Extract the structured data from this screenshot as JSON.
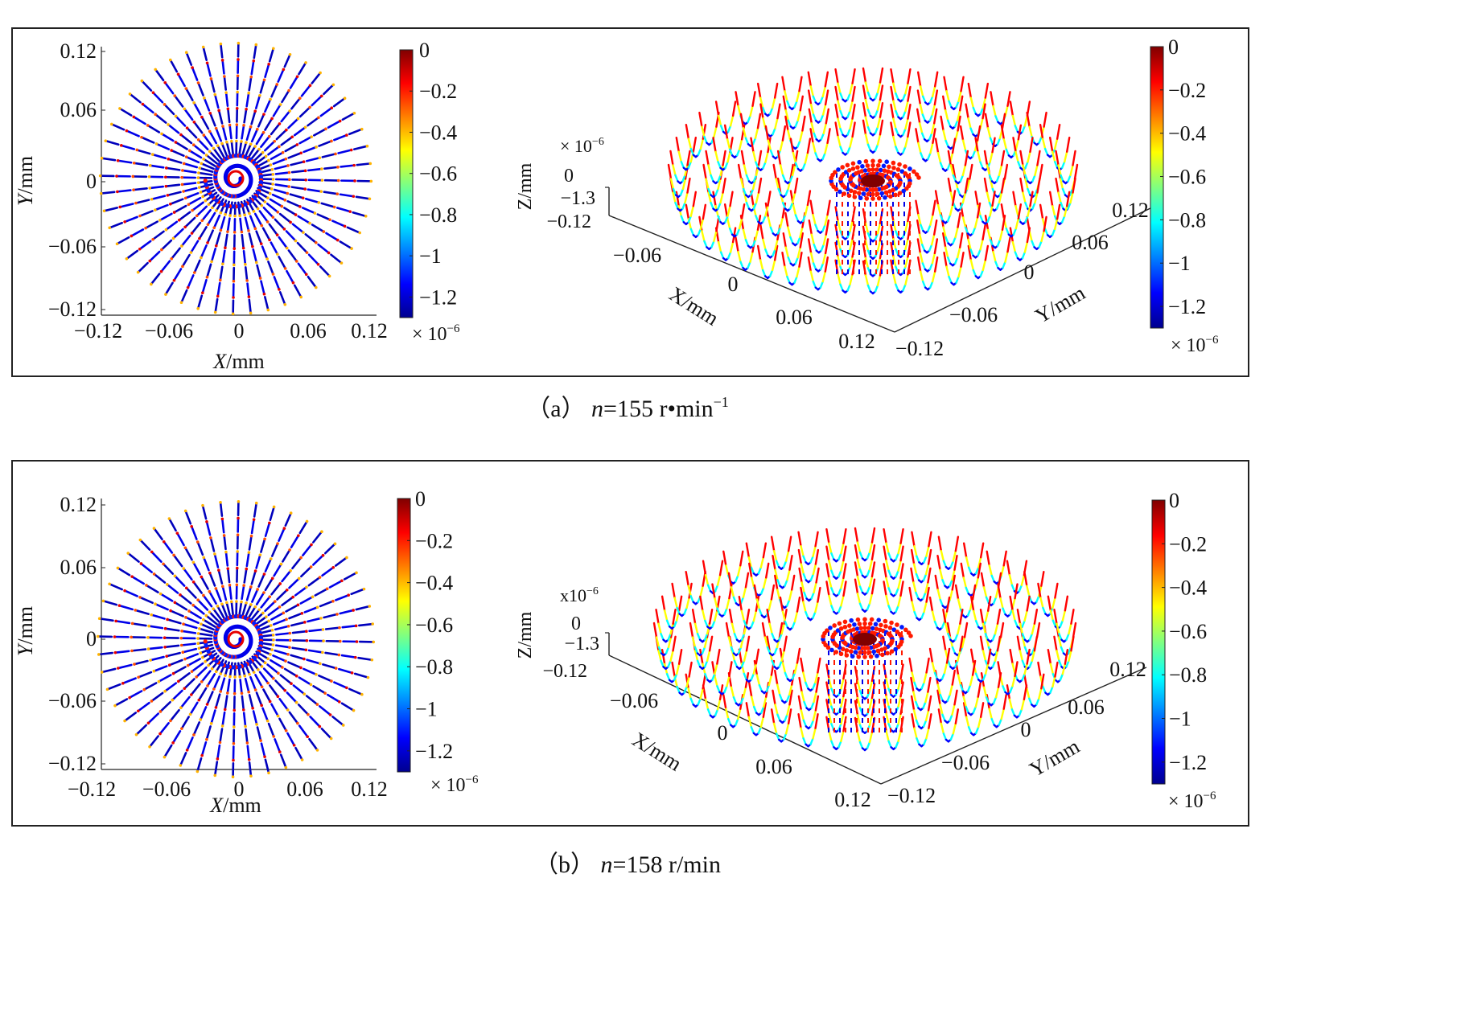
{
  "colormap": [
    "#00008f",
    "#0000ff",
    "#0080ff",
    "#00ffff",
    "#80ff80",
    "#ffff00",
    "#ff8000",
    "#ff0000",
    "#800000"
  ],
  "panels": [
    {
      "caption": {
        "label": "（a）",
        "var": "n",
        "rest": "=155 r•min",
        "sup": "−1"
      },
      "chart_data": [
        {
          "type": "scatter",
          "subtype": "2d-plan-view",
          "xlabel": "X/mm",
          "ylabel": "Y/mm",
          "xticks": [
            "−0.12",
            "−0.06",
            "0",
            "0.06",
            "0.12"
          ],
          "yticks": [
            "0.12",
            "0.06",
            "0",
            "−0.06",
            "−0.12"
          ],
          "xlim": [
            -0.12,
            0.12
          ],
          "ylim": [
            -0.12,
            0.12
          ],
          "radial_lines": 48,
          "colorbar": {
            "ticks": [
              "0",
              "−0.2",
              "−0.4",
              "−0.6",
              "−0.8",
              "−1",
              "−1.2"
            ],
            "range": [
              -1.3,
              0
            ],
            "scale": "× 10",
            "scale_exp": "−6"
          }
        },
        {
          "type": "scatter",
          "subtype": "3d-surface-trajectories",
          "xlabel": "X/mm",
          "ylabel": "Y/mm",
          "zlabel": "Z/mm",
          "xticks": [
            "−0.06",
            "0",
            "0.06",
            "0.12"
          ],
          "yticks": [
            "−0.12",
            "−0.06",
            "0",
            "0.06",
            "0.12"
          ],
          "zticks": [
            "0",
            "−1.3"
          ],
          "z_axis_origin_label": "−0.12",
          "z_scale": "× 10",
          "z_scale_exp": "−6",
          "zlim": [
            -1.3,
            0
          ],
          "colorbar": {
            "ticks": [
              "0",
              "−0.2",
              "−0.4",
              "−0.6",
              "−0.8",
              "−1",
              "−1.2"
            ],
            "range": [
              -1.3,
              0
            ],
            "scale": "× 10",
            "scale_exp": "−6"
          }
        }
      ]
    },
    {
      "caption": {
        "label": "（b）",
        "var": "n",
        "rest": "=158 r/min",
        "sup": ""
      },
      "chart_data": [
        {
          "type": "scatter",
          "subtype": "2d-plan-view",
          "xlabel": "X/mm",
          "ylabel": "Y/mm",
          "xticks": [
            "−0.12",
            "−0.06",
            "0",
            "0.06",
            "0.12"
          ],
          "yticks": [
            "0.12",
            "0.06",
            "0",
            "−0.06",
            "−0.12"
          ],
          "xlim": [
            -0.12,
            0.12
          ],
          "ylim": [
            -0.12,
            0.12
          ],
          "radial_lines": 48,
          "colorbar": {
            "ticks": [
              "0",
              "−0.2",
              "−0.4",
              "−0.6",
              "−0.8",
              "−1",
              "−1.2"
            ],
            "range": [
              -1.3,
              0
            ],
            "scale": "× 10",
            "scale_exp": "−6"
          }
        },
        {
          "type": "scatter",
          "subtype": "3d-surface-trajectories",
          "xlabel": "X/mm",
          "ylabel": "Y/mm",
          "zlabel": "Z/mm",
          "xticks": [
            "−0.06",
            "0",
            "0.06",
            "0.12"
          ],
          "yticks": [
            "−0.12",
            "−0.06",
            "0",
            "0.06",
            "0.12"
          ],
          "zticks": [
            "0",
            "−1.3"
          ],
          "z_axis_origin_label": "−0.12",
          "z_scale": "x10",
          "z_scale_exp": "−6",
          "zlim": [
            -1.3,
            0
          ],
          "colorbar": {
            "ticks": [
              "0",
              "−0.2",
              "−0.4",
              "−0.6",
              "−0.8",
              "−1",
              "−1.2"
            ],
            "range": [
              -1.3,
              0
            ],
            "scale": "× 10",
            "scale_exp": "−6"
          }
        }
      ]
    }
  ]
}
